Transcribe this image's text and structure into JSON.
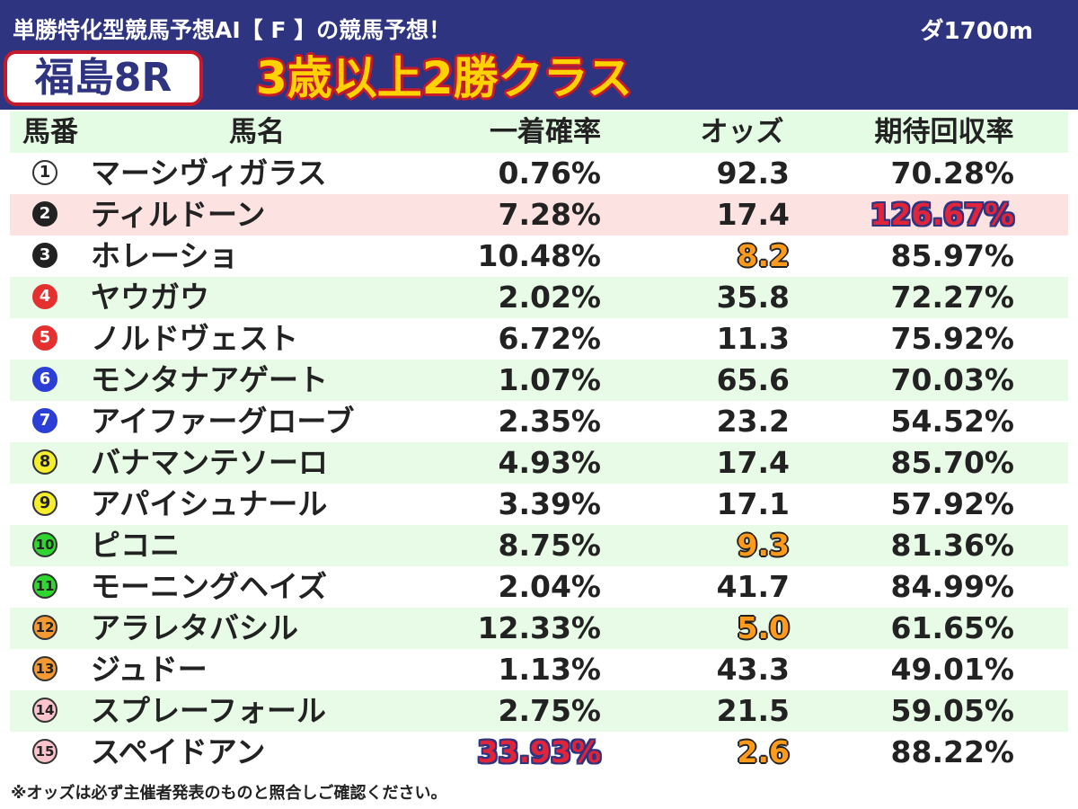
{
  "header": {
    "subtitle": "単勝特化型競馬予想AI【 F 】の競馬予想！",
    "course": "ダ1700m",
    "race_name": "福島8R",
    "race_class": "3歳以上2勝クラス"
  },
  "colors": {
    "header_bg": "#2e3480",
    "race_box_border": "#c41a2b",
    "race_class_fill": "#ffd200",
    "row_stripe": "#e8fbe6",
    "row_highlight": "#fde2e2",
    "highlight_orange": "#ff9a1a",
    "highlight_red": "#e0243a"
  },
  "table": {
    "columns": [
      "馬番",
      "馬名",
      "一着確率",
      "オッズ",
      "期待回収率"
    ],
    "rows": [
      {
        "no": "1",
        "name": "マーシヴィガラス",
        "prob": "0.76%",
        "odds": "92.3",
        "exp": "70.28%",
        "badge_bg": "#ffffff",
        "badge_fg": "#222222",
        "badge_border": "#333333",
        "row_bg": "none",
        "odds_hl": false,
        "prob_hl": false,
        "exp_hl": false
      },
      {
        "no": "2",
        "name": "ティルドーン",
        "prob": "7.28%",
        "odds": "17.4",
        "exp": "126.67%",
        "badge_bg": "#222222",
        "badge_fg": "#ffffff",
        "badge_border": "#222222",
        "row_bg": "pink",
        "odds_hl": false,
        "prob_hl": false,
        "exp_hl": true
      },
      {
        "no": "3",
        "name": "ホレーショ",
        "prob": "10.48%",
        "odds": "8.2",
        "exp": "85.97%",
        "badge_bg": "#222222",
        "badge_fg": "#ffffff",
        "badge_border": "#222222",
        "row_bg": "none",
        "odds_hl": true,
        "prob_hl": false,
        "exp_hl": false
      },
      {
        "no": "4",
        "name": "ヤウガウ",
        "prob": "2.02%",
        "odds": "35.8",
        "exp": "72.27%",
        "badge_bg": "#e53030",
        "badge_fg": "#ffffff",
        "badge_border": "#e53030",
        "row_bg": "stripe",
        "odds_hl": false,
        "prob_hl": false,
        "exp_hl": false
      },
      {
        "no": "5",
        "name": "ノルドヴェスト",
        "prob": "6.72%",
        "odds": "11.3",
        "exp": "75.92%",
        "badge_bg": "#e53030",
        "badge_fg": "#ffffff",
        "badge_border": "#e53030",
        "row_bg": "none",
        "odds_hl": false,
        "prob_hl": false,
        "exp_hl": false
      },
      {
        "no": "6",
        "name": "モンタナアゲート",
        "prob": "1.07%",
        "odds": "65.6",
        "exp": "70.03%",
        "badge_bg": "#2b3fd6",
        "badge_fg": "#ffffff",
        "badge_border": "#2b3fd6",
        "row_bg": "stripe",
        "odds_hl": false,
        "prob_hl": false,
        "exp_hl": false
      },
      {
        "no": "7",
        "name": "アイファーグローブ",
        "prob": "2.35%",
        "odds": "23.2",
        "exp": "54.52%",
        "badge_bg": "#2b3fd6",
        "badge_fg": "#ffffff",
        "badge_border": "#2b3fd6",
        "row_bg": "none",
        "odds_hl": false,
        "prob_hl": false,
        "exp_hl": false
      },
      {
        "no": "8",
        "name": "バナマンテソーロ",
        "prob": "4.93%",
        "odds": "17.4",
        "exp": "85.70%",
        "badge_bg": "#f5ee2a",
        "badge_fg": "#222222",
        "badge_border": "#333333",
        "row_bg": "stripe",
        "odds_hl": false,
        "prob_hl": false,
        "exp_hl": false
      },
      {
        "no": "9",
        "name": "アパイシュナール",
        "prob": "3.39%",
        "odds": "17.1",
        "exp": "57.92%",
        "badge_bg": "#f5ee2a",
        "badge_fg": "#222222",
        "badge_border": "#333333",
        "row_bg": "none",
        "odds_hl": false,
        "prob_hl": false,
        "exp_hl": false
      },
      {
        "no": "10",
        "name": "ピコニ",
        "prob": "8.75%",
        "odds": "9.3",
        "exp": "81.36%",
        "badge_bg": "#2fd62f",
        "badge_fg": "#222222",
        "badge_border": "#333333",
        "row_bg": "stripe",
        "odds_hl": true,
        "prob_hl": false,
        "exp_hl": false
      },
      {
        "no": "11",
        "name": "モーニングヘイズ",
        "prob": "2.04%",
        "odds": "41.7",
        "exp": "84.99%",
        "badge_bg": "#2fd62f",
        "badge_fg": "#222222",
        "badge_border": "#333333",
        "row_bg": "none",
        "odds_hl": false,
        "prob_hl": false,
        "exp_hl": false
      },
      {
        "no": "12",
        "name": "アラレタバシル",
        "prob": "12.33%",
        "odds": "5.0",
        "exp": "61.65%",
        "badge_bg": "#f59a32",
        "badge_fg": "#222222",
        "badge_border": "#333333",
        "row_bg": "stripe",
        "odds_hl": true,
        "prob_hl": false,
        "exp_hl": false
      },
      {
        "no": "13",
        "name": "ジュドー",
        "prob": "1.13%",
        "odds": "43.3",
        "exp": "49.01%",
        "badge_bg": "#f59a32",
        "badge_fg": "#222222",
        "badge_border": "#333333",
        "row_bg": "none",
        "odds_hl": false,
        "prob_hl": false,
        "exp_hl": false
      },
      {
        "no": "14",
        "name": "スプレーフォール",
        "prob": "2.75%",
        "odds": "21.5",
        "exp": "59.05%",
        "badge_bg": "#fbc4cc",
        "badge_fg": "#222222",
        "badge_border": "#333333",
        "row_bg": "stripe",
        "odds_hl": false,
        "prob_hl": false,
        "exp_hl": false
      },
      {
        "no": "15",
        "name": "スペイドアン",
        "prob": "33.93%",
        "odds": "2.6",
        "exp": "88.22%",
        "badge_bg": "#fbc4cc",
        "badge_fg": "#222222",
        "badge_border": "#333333",
        "row_bg": "none",
        "odds_hl": true,
        "prob_hl": true,
        "exp_hl": false
      }
    ]
  },
  "footer": {
    "note": "※オッズは必ず主催者発表のものと照合しご確認ください。"
  }
}
